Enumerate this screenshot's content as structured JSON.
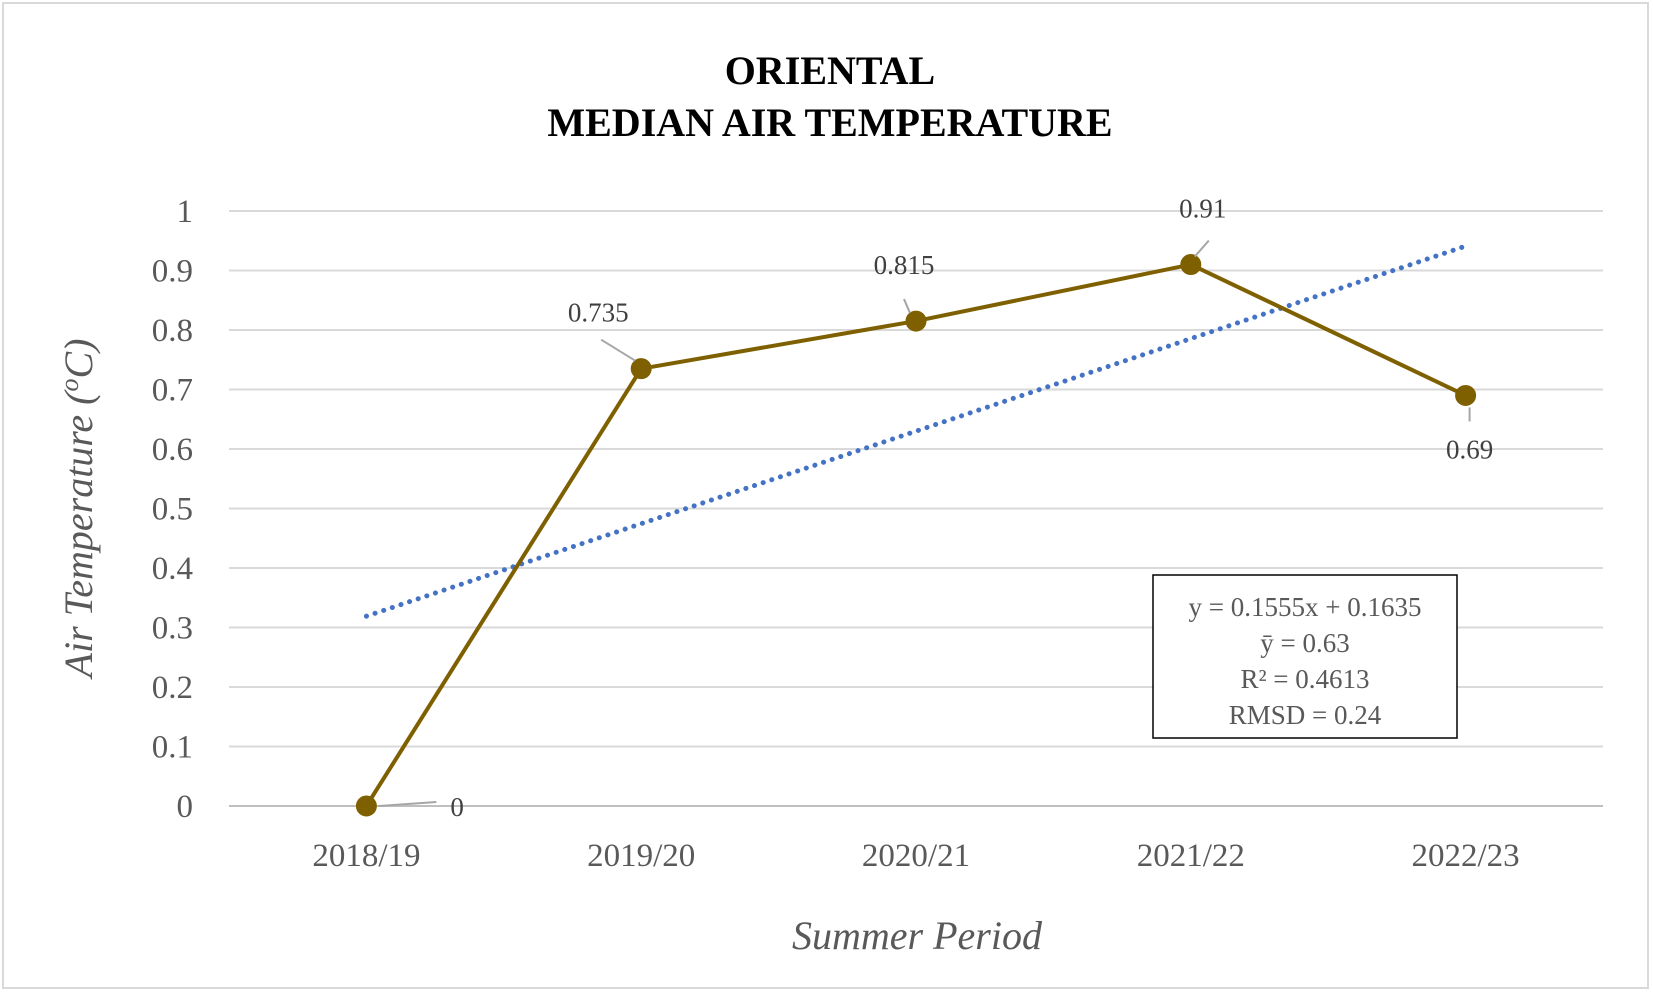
{
  "chart_data": {
    "type": "line",
    "title_lines": [
      "ORIENTAL",
      "MEDIAN AIR TEMPERATURE"
    ],
    "xlabel": "Summer Period",
    "ylabel": "Air Temperature (",
    "ylabel_sup": "o",
    "ylabel_end": "C)",
    "categories": [
      "2018/19",
      "2019/20",
      "2020/21",
      "2021/22",
      "2022/23"
    ],
    "ylim": [
      0,
      1
    ],
    "yticks": [
      "0",
      "0.1",
      "0.2",
      "0.3",
      "0.4",
      "0.5",
      "0.6",
      "0.7",
      "0.8",
      "0.9",
      "1"
    ],
    "grid": true,
    "series": [
      {
        "values": [
          0,
          0.735,
          0.815,
          0.91,
          0.69
        ],
        "data_labels": [
          "0",
          "0.735",
          "0.815",
          "0.91",
          "0.69"
        ],
        "color": "#7f6000"
      }
    ],
    "trendline": {
      "slope": 0.1555,
      "intercept": 0.1635,
      "color": "#4472c4",
      "style": "dotted"
    },
    "stats_box": {
      "lines": [
        "y = 0.1555x + 0.1635",
        "ȳ = 0.63",
        "R² = 0.4613",
        "RMSD = 0.24"
      ]
    },
    "colors": {
      "grid": "#d9d9d9",
      "axis": "#bfbfbf",
      "leader": "#a6a6a6"
    }
  }
}
